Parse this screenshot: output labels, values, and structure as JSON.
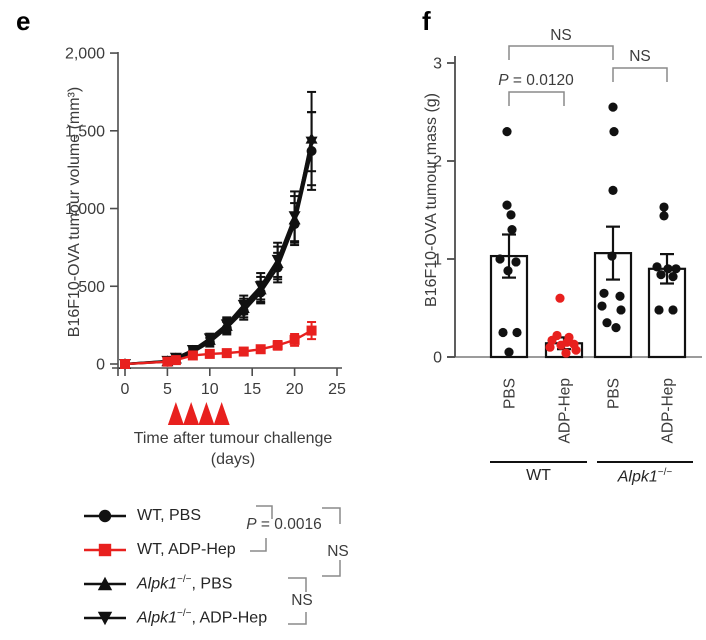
{
  "panel_e": {
    "label": "e",
    "y_axis_title": "B16F10-OVA tumour volume (mm³)",
    "x_axis_title_line1": "Time after tumour challenge",
    "x_axis_title_line2": "(days)",
    "annotations": {
      "p_italic": "P",
      "p_rest": " = 0.0016",
      "ns_outer": "NS",
      "ns_pair": "NS"
    },
    "legend": {
      "items": [
        {
          "marker": "circle",
          "color": "#111111",
          "parts": [
            {
              "t": "WT, PBS"
            }
          ]
        },
        {
          "marker": "square",
          "color": "#e8201e",
          "parts": [
            {
              "t": "WT, ADP-Hep"
            }
          ]
        },
        {
          "marker": "triangle-up",
          "color": "#111111",
          "parts": [
            {
              "t": "Alpk1",
              "it": true
            },
            {
              "t": "−/−",
              "sup": true
            },
            {
              "t": ", PBS"
            }
          ]
        },
        {
          "marker": "triangle-down",
          "color": "#111111",
          "parts": [
            {
              "t": "Alpk1",
              "it": true
            },
            {
              "t": "−/−",
              "sup": true
            },
            {
              "t": ", ADP-Hep"
            }
          ]
        }
      ]
    },
    "chart_data": {
      "type": "line",
      "x": [
        0,
        5,
        6,
        8,
        10,
        12,
        14,
        16,
        18,
        20,
        22
      ],
      "x_ticks": [
        0,
        5,
        10,
        15,
        20,
        25
      ],
      "xlim": [
        0,
        25
      ],
      "y_ticks": [
        0,
        500,
        1000,
        1500,
        2000
      ],
      "y_tick_labels": [
        "0",
        "500",
        "1,000",
        "1,500",
        "2,000"
      ],
      "ylim": [
        0,
        2000
      ],
      "xlabel": "Time after tumour challenge (days)",
      "ylabel": "B16F10-OVA tumour volume (mm³)",
      "treatment_days": [
        6,
        7.8,
        9.6,
        11.4
      ],
      "arrow_color": "#e8201e",
      "series": [
        {
          "name": "WT, PBS",
          "marker": "circle",
          "color": "#111111",
          "values": [
            0,
            15,
            30,
            75,
            140,
            230,
            340,
            460,
            620,
            900,
            1370
          ],
          "errors": [
            0,
            5,
            10,
            18,
            28,
            40,
            55,
            70,
            95,
            135,
            250
          ]
        },
        {
          "name": "WT, ADP-Hep",
          "marker": "square",
          "color": "#e8201e",
          "values": [
            0,
            15,
            25,
            55,
            65,
            70,
            80,
            95,
            120,
            155,
            215
          ],
          "errors": [
            0,
            5,
            8,
            12,
            15,
            16,
            18,
            22,
            28,
            38,
            55
          ]
        },
        {
          "name": "Alpk1−/−, PBS",
          "marker": "triangle-up",
          "color": "#111111",
          "values": [
            0,
            18,
            35,
            85,
            155,
            245,
            360,
            480,
            650,
            930,
            1450
          ],
          "errors": [
            0,
            5,
            10,
            18,
            30,
            45,
            60,
            80,
            105,
            150,
            300
          ]
        },
        {
          "name": "Alpk1−/−, ADP-Hep",
          "marker": "triangle-down",
          "color": "#111111",
          "values": [
            0,
            20,
            40,
            90,
            165,
            255,
            380,
            500,
            670,
            950,
            1430
          ],
          "errors": [
            0,
            5,
            10,
            18,
            30,
            45,
            60,
            85,
            110,
            160,
            190
          ]
        }
      ]
    }
  },
  "panel_f": {
    "label": "f",
    "y_axis_title": "B16F10-OVA tumour mass (g)",
    "annotations": {
      "ns_top": "NS",
      "ns_right": "NS",
      "p_italic": "P",
      "p_rest": " = 0.0120"
    },
    "group_labels": {
      "wt": "WT",
      "alpk1_gene": "Alpk1",
      "alpk1_sup": "−/−"
    },
    "chart_data": {
      "type": "bar-scatter",
      "categories": [
        "PBS",
        "ADP-Hep",
        "PBS",
        "ADP-Hep"
      ],
      "groups": [
        "WT",
        "Alpk1−/−"
      ],
      "y_ticks": [
        0,
        1,
        2,
        3
      ],
      "ylim": [
        0,
        3
      ],
      "ylabel": "B16F10-OVA tumour mass (g)",
      "bars": [
        {
          "category": "PBS",
          "group": "WT",
          "mean": 1.03,
          "sem": 0.22,
          "dot_color": "#111111",
          "dots": [
            2.3,
            1.55,
            1.45,
            1.3,
            1.0,
            0.97,
            0.88,
            0.25,
            0.25,
            0.05
          ],
          "dot_dx": [
            -2,
            -2,
            2,
            3,
            -9,
            7,
            -1,
            -6,
            8,
            0
          ]
        },
        {
          "category": "ADP-Hep",
          "group": "WT",
          "mean": 0.14,
          "sem": 0.06,
          "dot_color": "#e8201e",
          "dots": [
            0.6,
            0.22,
            0.2,
            0.17,
            0.15,
            0.13,
            0.12,
            0.1,
            0.07,
            0.04
          ],
          "dot_dx": [
            -4,
            -7,
            5,
            -12,
            3,
            10,
            -3,
            -14,
            12,
            2
          ]
        },
        {
          "category": "PBS",
          "group": "Alpk1−/−",
          "mean": 1.06,
          "sem": 0.27,
          "dot_color": "#111111",
          "dots": [
            2.55,
            2.3,
            1.7,
            1.03,
            0.65,
            0.62,
            0.52,
            0.48,
            0.35,
            0.3
          ],
          "dot_dx": [
            0,
            1,
            0,
            -1,
            -9,
            7,
            -11,
            8,
            -6,
            3
          ]
        },
        {
          "category": "ADP-Hep",
          "group": "Alpk1−/−",
          "mean": 0.9,
          "sem": 0.15,
          "dot_color": "#111111",
          "dots": [
            1.53,
            1.44,
            0.92,
            0.9,
            0.9,
            0.84,
            0.82,
            0.48,
            0.48
          ],
          "dot_dx": [
            -3,
            -3,
            -10,
            1,
            9,
            -6,
            6,
            -8,
            6
          ]
        }
      ]
    }
  },
  "colors": {
    "red": "#e8201e",
    "black": "#111111",
    "axis": "#4d4d4d",
    "bracket": "#8a8a8a",
    "baseline": "#9b9b9b"
  }
}
